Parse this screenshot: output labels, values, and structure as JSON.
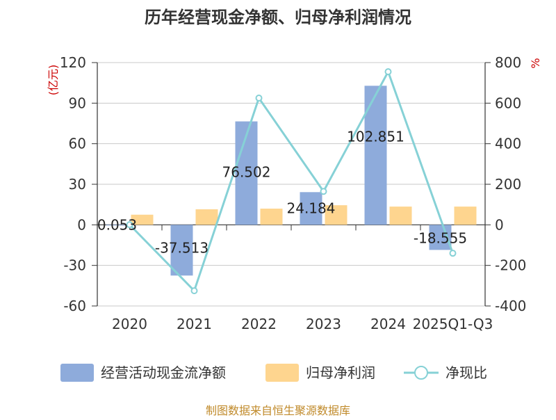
{
  "chart_data": {
    "type": "bar",
    "title": "历年经营现金净额、归母净利润情况",
    "categories": [
      "2020",
      "2021",
      "2022",
      "2023",
      "2024",
      "2025Q1-Q3"
    ],
    "series": [
      {
        "name": "经营活动现金流净额",
        "type": "bar",
        "axis": "left",
        "color": "#8eabdb",
        "values": [
          0.053,
          -37.513,
          76.502,
          24.184,
          102.851,
          -18.555
        ],
        "labels": [
          "0.053",
          "-37.513",
          "76.502",
          "24.184",
          "102.851",
          "-18.555"
        ]
      },
      {
        "name": "归母净利润",
        "type": "bar",
        "axis": "left",
        "color": "#fed58f",
        "values": [
          7.5,
          11.5,
          12.0,
          14.5,
          13.5,
          13.5
        ]
      },
      {
        "name": "净现比",
        "type": "line",
        "axis": "right",
        "color": "#86d1d6",
        "values": [
          0.7,
          -325,
          625,
          165,
          755,
          -140
        ]
      }
    ],
    "left_axis": {
      "unit": "(亿元)",
      "min": -60,
      "max": 120,
      "ticks": [
        -60,
        -30,
        0,
        30,
        60,
        90,
        120
      ]
    },
    "right_axis": {
      "unit": "%",
      "min": -400,
      "max": 800,
      "ticks": [
        -400,
        -200,
        0,
        200,
        400,
        600,
        800
      ]
    },
    "grid": true,
    "legend": "bottom"
  },
  "source": "制图数据来自恒生聚源数据库"
}
